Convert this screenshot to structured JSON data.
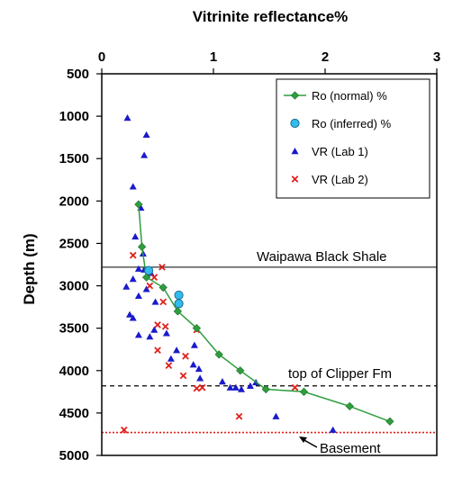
{
  "chart_data": {
    "type": "scatter",
    "xlabel": "Vitrinite reflectance%",
    "ylabel": "Depth (m)",
    "xlim": [
      0,
      3
    ],
    "ylim": [
      500,
      5000
    ],
    "y_inverted": true,
    "x_axis_position": "top",
    "xticks": [
      "0",
      "1",
      "2",
      "3"
    ],
    "yticks": [
      "500",
      "1000",
      "1500",
      "2000",
      "2500",
      "3000",
      "3500",
      "4000",
      "4500",
      "5000"
    ],
    "grid": false,
    "legend_position": "top-right",
    "series": [
      {
        "name": "Ro (normal) %",
        "marker": "diamond",
        "line": true,
        "color": "#2e9e3e",
        "points": [
          [
            0.33,
            2040
          ],
          [
            0.36,
            2540
          ],
          [
            0.4,
            2900
          ],
          [
            0.55,
            3020
          ],
          [
            0.68,
            3300
          ],
          [
            0.85,
            3500
          ],
          [
            1.05,
            3810
          ],
          [
            1.24,
            4000
          ],
          [
            1.47,
            4220
          ],
          [
            1.81,
            4250
          ],
          [
            2.22,
            4420
          ],
          [
            2.58,
            4600
          ]
        ]
      },
      {
        "name": "Ro (inferred) %",
        "marker": "circle",
        "line": false,
        "color": "#33bbee",
        "points": [
          [
            0.42,
            2820
          ],
          [
            0.69,
            3110
          ],
          [
            0.69,
            3210
          ]
        ]
      },
      {
        "name": "VR (Lab 1)",
        "marker": "triangle",
        "line": false,
        "color": "#1a1acc",
        "points": [
          [
            0.23,
            1020
          ],
          [
            0.4,
            1220
          ],
          [
            0.38,
            1460
          ],
          [
            0.28,
            1830
          ],
          [
            0.35,
            2080
          ],
          [
            0.3,
            2420
          ],
          [
            0.37,
            2620
          ],
          [
            0.33,
            2800
          ],
          [
            0.38,
            2810
          ],
          [
            0.44,
            2850
          ],
          [
            0.28,
            2920
          ],
          [
            0.22,
            3010
          ],
          [
            0.4,
            3040
          ],
          [
            0.33,
            3120
          ],
          [
            0.48,
            3190
          ],
          [
            0.25,
            3340
          ],
          [
            0.28,
            3380
          ],
          [
            0.58,
            3560
          ],
          [
            0.33,
            3580
          ],
          [
            0.67,
            3760
          ],
          [
            0.83,
            3700
          ],
          [
            0.87,
            3980
          ],
          [
            0.43,
            3600
          ],
          [
            0.88,
            4090
          ],
          [
            0.82,
            3930
          ],
          [
            1.08,
            4130
          ],
          [
            1.15,
            4200
          ],
          [
            1.2,
            4200
          ],
          [
            1.25,
            4220
          ],
          [
            1.33,
            4180
          ],
          [
            1.38,
            4140
          ],
          [
            1.56,
            4540
          ],
          [
            2.07,
            4700
          ],
          [
            0.47,
            3520
          ],
          [
            0.62,
            3860
          ]
        ]
      },
      {
        "name": "VR (Lab 2)",
        "marker": "x",
        "line": false,
        "color": "#e0201c",
        "points": [
          [
            0.28,
            2640
          ],
          [
            0.54,
            2780
          ],
          [
            0.47,
            2900
          ],
          [
            0.43,
            3000
          ],
          [
            0.55,
            3190
          ],
          [
            0.5,
            3460
          ],
          [
            0.57,
            3480
          ],
          [
            0.85,
            3520
          ],
          [
            0.5,
            3760
          ],
          [
            0.6,
            3940
          ],
          [
            0.75,
            3830
          ],
          [
            0.73,
            4060
          ],
          [
            0.9,
            4200
          ],
          [
            0.85,
            4210
          ],
          [
            1.73,
            4200
          ],
          [
            1.23,
            4540
          ],
          [
            0.2,
            4700
          ]
        ]
      }
    ],
    "annotations": {
      "waipawa_label": "Waipawa Black Shale",
      "clipper_label": "top of Clipper Fm",
      "basement_label": "Basement"
    },
    "reference_lines": {
      "waipawa_depth": 2780,
      "clipper_depth": 4180,
      "basement_depth": 4730
    }
  }
}
